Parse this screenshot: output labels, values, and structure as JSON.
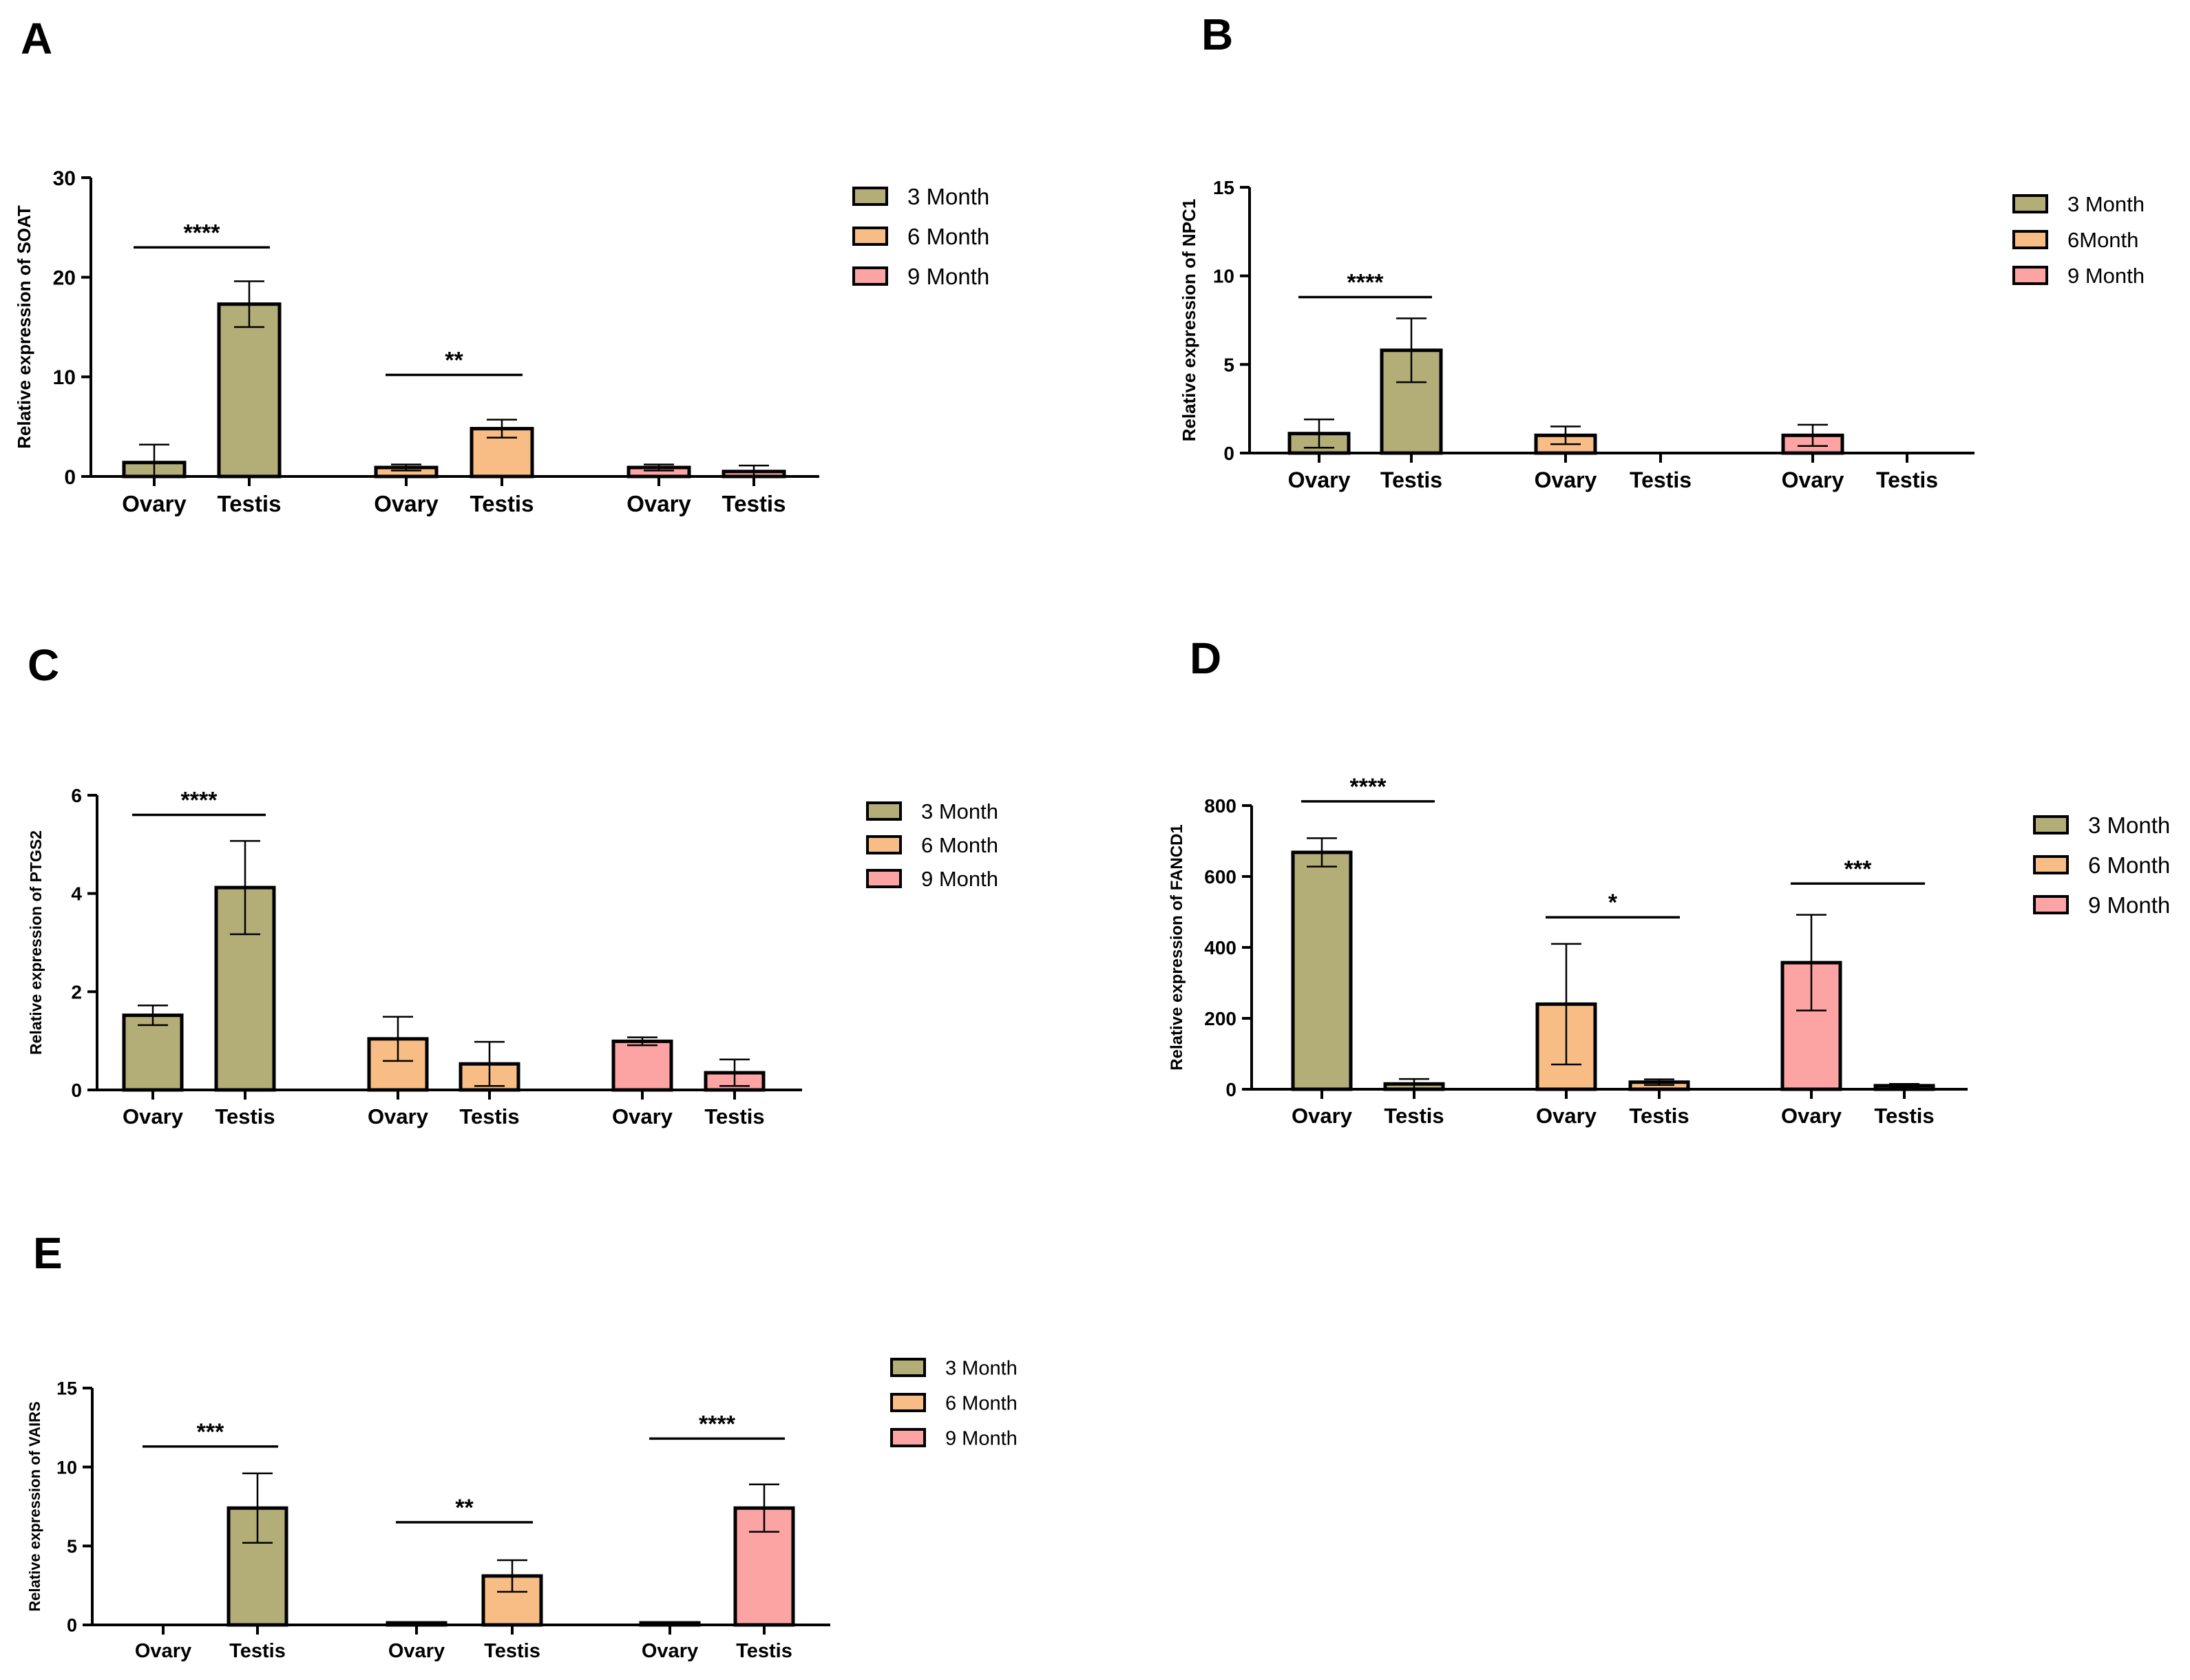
{
  "colors": {
    "3 Month": "#b3ad78",
    "6 Month": "#f7bd85",
    "9 Month": "#fca3a3",
    "axis": "#000000"
  },
  "chart_data": [
    {
      "panel": "A",
      "type": "bar",
      "ylabel": "Relative expression of SOAT",
      "ylim": [
        0,
        30
      ],
      "yticks": [
        0,
        10,
        20,
        30
      ],
      "groups": [
        {
          "series": "3 Month",
          "bars": [
            {
              "label": "Ovary",
              "value": 1.4,
              "err": 1.8
            },
            {
              "label": "Testis",
              "value": 17.3,
              "err": 2.3
            }
          ]
        },
        {
          "series": "6 Month",
          "bars": [
            {
              "label": "Ovary",
              "value": 0.9,
              "err": 0.3
            },
            {
              "label": "Testis",
              "value": 4.8,
              "err": 0.9
            }
          ]
        },
        {
          "series": "9 Month",
          "bars": [
            {
              "label": "Ovary",
              "value": 0.9,
              "err": 0.3
            },
            {
              "label": "Testis",
              "value": 0.5,
              "err": 0.6
            }
          ]
        }
      ],
      "significance": [
        {
          "group": 0,
          "label": "****",
          "y": 23
        },
        {
          "group": 1,
          "label": "**",
          "y": 10.2
        }
      ],
      "legend": [
        "3 Month",
        "6 Month",
        "9 Month"
      ]
    },
    {
      "panel": "B",
      "type": "bar",
      "ylabel": "Relative expression of NPC1",
      "ylim": [
        0,
        15
      ],
      "yticks": [
        0,
        5,
        10,
        15
      ],
      "groups": [
        {
          "series": "3 Month",
          "bars": [
            {
              "label": "Ovary",
              "value": 1.1,
              "err": 0.8
            },
            {
              "label": "Testis",
              "value": 5.8,
              "err": 1.8
            }
          ]
        },
        {
          "series": "6 Month",
          "bars": [
            {
              "label": "Ovary",
              "value": 1.0,
              "err": 0.5
            },
            {
              "label": "Testis",
              "value": 0,
              "err": 0
            }
          ]
        },
        {
          "series": "9 Month",
          "bars": [
            {
              "label": "Ovary",
              "value": 1.0,
              "err": 0.6
            },
            {
              "label": "Testis",
              "value": 0,
              "err": 0
            }
          ]
        }
      ],
      "significance": [
        {
          "group": 0,
          "label": "****",
          "y": 8.8
        }
      ],
      "legend": [
        "3 Month",
        "6Month",
        "9 Month"
      ]
    },
    {
      "panel": "C",
      "type": "bar",
      "ylabel": "Relative expression of PTGS2",
      "ylim": [
        0,
        6
      ],
      "yticks": [
        0,
        2,
        4,
        6
      ],
      "groups": [
        {
          "series": "3 Month",
          "bars": [
            {
              "label": "Ovary",
              "value": 1.52,
              "err": 0.2
            },
            {
              "label": "Testis",
              "value": 4.12,
              "err": 0.95
            }
          ]
        },
        {
          "series": "6 Month",
          "bars": [
            {
              "label": "Ovary",
              "value": 1.04,
              "err": 0.45
            },
            {
              "label": "Testis",
              "value": 0.53,
              "err": 0.45
            }
          ]
        },
        {
          "series": "9 Month",
          "bars": [
            {
              "label": "Ovary",
              "value": 0.99,
              "err": 0.08
            },
            {
              "label": "Testis",
              "value": 0.35,
              "err": 0.27
            }
          ]
        }
      ],
      "significance": [
        {
          "group": 0,
          "label": "****",
          "y": 5.6
        }
      ],
      "legend": [
        "3 Month",
        "6 Month",
        "9 Month"
      ]
    },
    {
      "panel": "D",
      "type": "bar",
      "ylabel": "Relative expression of FANCD1",
      "ylim": [
        0,
        800
      ],
      "yticks": [
        0,
        200,
        400,
        600,
        800
      ],
      "groups": [
        {
          "series": "3 Month",
          "bars": [
            {
              "label": "Ovary",
              "value": 668,
              "err": 40
            },
            {
              "label": "Testis",
              "value": 15,
              "err": 14
            }
          ]
        },
        {
          "series": "6 Month",
          "bars": [
            {
              "label": "Ovary",
              "value": 240,
              "err": 170
            },
            {
              "label": "Testis",
              "value": 20,
              "err": 8
            }
          ]
        },
        {
          "series": "9 Month",
          "bars": [
            {
              "label": "Ovary",
              "value": 357,
              "err": 135
            },
            {
              "label": "Testis",
              "value": 10,
              "err": 5
            }
          ]
        }
      ],
      "significance": [
        {
          "group": 0,
          "label": "****",
          "y": 812
        },
        {
          "group": 1,
          "label": "*",
          "y": 485
        },
        {
          "group": 2,
          "label": "***",
          "y": 580
        }
      ],
      "legend": [
        "3 Month",
        "6 Month",
        "9 Month"
      ]
    },
    {
      "panel": "E",
      "type": "bar",
      "ylabel": "Relative expression of VAIRS",
      "ylim": [
        0,
        15
      ],
      "yticks": [
        0,
        5,
        10,
        15
      ],
      "groups": [
        {
          "series": "3 Month",
          "bars": [
            {
              "label": "Ovary",
              "value": 0,
              "err": 0
            },
            {
              "label": "Testis",
              "value": 7.4,
              "err": 2.2
            }
          ]
        },
        {
          "series": "6 Month",
          "bars": [
            {
              "label": "Ovary",
              "value": 0.1,
              "err": 0.05
            },
            {
              "label": "Testis",
              "value": 3.1,
              "err": 1.0
            }
          ]
        },
        {
          "series": "9 Month",
          "bars": [
            {
              "label": "Ovary",
              "value": 0.1,
              "err": 0.05
            },
            {
              "label": "Testis",
              "value": 7.4,
              "err": 1.5
            }
          ]
        }
      ],
      "significance": [
        {
          "group": 0,
          "label": "***",
          "y": 11.3
        },
        {
          "group": 1,
          "label": "**",
          "y": 6.5
        },
        {
          "group": 2,
          "label": "****",
          "y": 11.8
        }
      ],
      "legend": [
        "3 Month",
        "6 Month",
        "9 Month"
      ]
    }
  ]
}
